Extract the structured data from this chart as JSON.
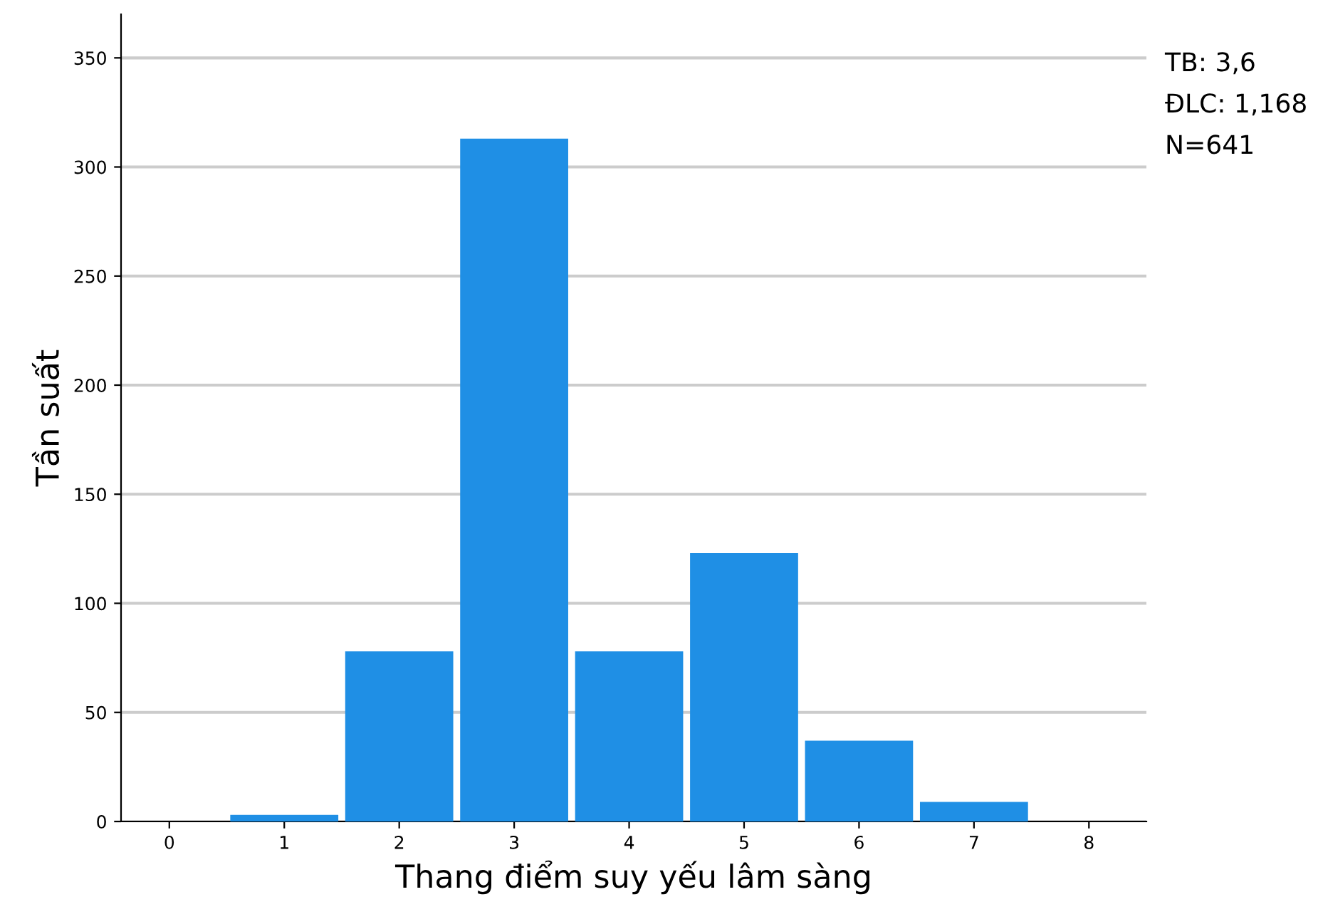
{
  "chart_data": {
    "type": "bar",
    "xlabel": "Thang điểm suy yếu lâm sàng",
    "ylabel": "Tần suất",
    "categories": [
      "0",
      "1",
      "2",
      "3",
      "4",
      "5",
      "6",
      "7",
      "8"
    ],
    "values": [
      0,
      3,
      78,
      313,
      78,
      123,
      37,
      9,
      0
    ],
    "color": "#1f8fe5",
    "ylim": [
      0,
      370
    ],
    "yticks": [
      0,
      50,
      100,
      150,
      200,
      250,
      300,
      350
    ],
    "grid": "y",
    "annotations": [
      "TB: 3,6",
      "ĐLC: 1,168",
      "N=641"
    ]
  }
}
